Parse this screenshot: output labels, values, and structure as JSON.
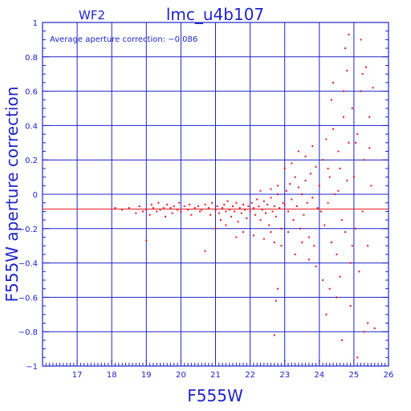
{
  "header": {
    "chip_label": "WF2",
    "title": "lmc_u4b107"
  },
  "annotation": {
    "text": "Average aperture correction: −0.086"
  },
  "axes": {
    "x_label": "F555W",
    "y_label": "F555W aperture correction",
    "x_ticks": [
      "17",
      "18",
      "19",
      "20",
      "21",
      "22",
      "23",
      "24",
      "25",
      "26"
    ],
    "y_ticks": [
      "1",
      "0.8",
      "0.6",
      "0.4",
      "0.2",
      "0",
      "−0.2",
      "−0.4",
      "−0.6",
      "−0.8",
      "−1"
    ]
  },
  "colors": {
    "axis_blue": "#1f24c8",
    "point_red": "#e8141a"
  },
  "chart_data": {
    "type": "scatter",
    "title": "lmc_u4b107",
    "subtitle": "WF2",
    "xlabel": "F555W",
    "ylabel": "F555W aperture correction",
    "xlim": [
      16,
      26
    ],
    "ylim": [
      -1,
      1
    ],
    "grid": true,
    "reference_line": {
      "y": -0.086
    },
    "series": [
      {
        "points": [
          [
            18.1,
            -0.08
          ],
          [
            18.3,
            -0.09
          ],
          [
            18.5,
            -0.08
          ],
          [
            18.7,
            -0.11
          ],
          [
            18.8,
            -0.07
          ],
          [
            18.9,
            -0.1
          ],
          [
            19.0,
            -0.09
          ],
          [
            19.0,
            -0.27
          ],
          [
            19.1,
            -0.12
          ],
          [
            19.15,
            -0.06
          ],
          [
            19.2,
            -0.08
          ],
          [
            19.3,
            -0.1
          ],
          [
            19.35,
            -0.05
          ],
          [
            19.4,
            -0.09
          ],
          [
            19.5,
            -0.08
          ],
          [
            19.55,
            -0.13
          ],
          [
            19.6,
            -0.06
          ],
          [
            19.7,
            -0.08
          ],
          [
            19.75,
            -0.11
          ],
          [
            19.8,
            -0.07
          ],
          [
            19.9,
            -0.09
          ],
          [
            19.95,
            -0.05
          ],
          [
            20.0,
            -0.1
          ],
          [
            20.1,
            -0.07
          ],
          [
            20.2,
            -0.09
          ],
          [
            20.25,
            -0.06
          ],
          [
            20.3,
            -0.12
          ],
          [
            20.4,
            -0.08
          ],
          [
            20.5,
            -0.07
          ],
          [
            20.55,
            -0.1
          ],
          [
            20.6,
            -0.09
          ],
          [
            20.7,
            -0.06
          ],
          [
            20.7,
            -0.33
          ],
          [
            20.8,
            -0.08
          ],
          [
            20.85,
            -0.12
          ],
          [
            20.9,
            -0.05
          ],
          [
            21.0,
            -0.09
          ],
          [
            21.05,
            -0.07
          ],
          [
            21.1,
            -0.11
          ],
          [
            21.15,
            -0.15
          ],
          [
            21.2,
            -0.08
          ],
          [
            21.25,
            -0.06
          ],
          [
            21.3,
            -0.1
          ],
          [
            21.35,
            -0.04
          ],
          [
            21.4,
            -0.09
          ],
          [
            21.45,
            -0.13
          ],
          [
            21.5,
            -0.07
          ],
          [
            21.55,
            -0.1
          ],
          [
            21.6,
            -0.05
          ],
          [
            21.65,
            -0.16
          ],
          [
            21.7,
            -0.08
          ],
          [
            21.75,
            -0.11
          ],
          [
            21.8,
            -0.06
          ],
          [
            21.85,
            -0.09
          ],
          [
            21.9,
            -0.14
          ],
          [
            21.95,
            -0.07
          ],
          [
            21.0,
            -0.2
          ],
          [
            21.3,
            -0.18
          ],
          [
            21.6,
            -0.25
          ],
          [
            21.8,
            -0.22
          ],
          [
            22.0,
            -0.1
          ],
          [
            22.05,
            -0.05
          ],
          [
            22.1,
            -0.08
          ],
          [
            22.15,
            -0.12
          ],
          [
            22.2,
            -0.03
          ],
          [
            22.25,
            -0.07
          ],
          [
            22.3,
            -0.15
          ],
          [
            22.35,
            -0.09
          ],
          [
            22.4,
            -0.04
          ],
          [
            22.45,
            -0.11
          ],
          [
            22.5,
            -0.06
          ],
          [
            22.55,
            -0.18
          ],
          [
            22.6,
            -0.02
          ],
          [
            22.65,
            -0.1
          ],
          [
            22.7,
            -0.07
          ],
          [
            22.75,
            -0.13
          ],
          [
            22.8,
            0.0
          ],
          [
            22.85,
            -0.08
          ],
          [
            22.9,
            -0.2
          ],
          [
            22.95,
            -0.05
          ],
          [
            22.1,
            -0.24
          ],
          [
            22.4,
            -0.26
          ],
          [
            22.6,
            -0.22
          ],
          [
            22.7,
            -0.28
          ],
          [
            22.9,
            -0.3
          ],
          [
            22.3,
            0.02
          ],
          [
            22.6,
            0.03
          ],
          [
            22.8,
            0.05
          ],
          [
            23.0,
            -0.06
          ],
          [
            23.05,
            0.02
          ],
          [
            23.1,
            -0.1
          ],
          [
            23.15,
            0.06
          ],
          [
            23.2,
            -0.03
          ],
          [
            23.25,
            -0.15
          ],
          [
            23.3,
            0.1
          ],
          [
            23.35,
            -0.07
          ],
          [
            23.4,
            0.04
          ],
          [
            23.45,
            -0.2
          ],
          [
            23.5,
            0.0
          ],
          [
            23.55,
            -0.12
          ],
          [
            23.6,
            0.08
          ],
          [
            23.65,
            -0.05
          ],
          [
            23.7,
            -0.25
          ],
          [
            23.75,
            0.12
          ],
          [
            23.8,
            -0.02
          ],
          [
            23.85,
            -0.3
          ],
          [
            23.9,
            0.16
          ],
          [
            23.95,
            -0.08
          ],
          [
            23.0,
            0.15
          ],
          [
            23.2,
            0.18
          ],
          [
            23.4,
            0.25
          ],
          [
            23.6,
            0.22
          ],
          [
            23.8,
            0.28
          ],
          [
            23.3,
            -0.35
          ],
          [
            23.5,
            -0.28
          ],
          [
            23.7,
            -0.38
          ],
          [
            23.9,
            -0.42
          ],
          [
            23.1,
            -0.22
          ],
          [
            22.8,
            -0.55
          ],
          [
            22.75,
            -0.62
          ],
          [
            22.7,
            -0.82
          ],
          [
            24.0,
            0.05
          ],
          [
            24.05,
            -0.1
          ],
          [
            24.1,
            0.2
          ],
          [
            24.15,
            -0.18
          ],
          [
            24.2,
            0.32
          ],
          [
            24.25,
            -0.05
          ],
          [
            24.3,
            0.1
          ],
          [
            24.35,
            -0.28
          ],
          [
            24.4,
            0.38
          ],
          [
            24.45,
            0.0
          ],
          [
            24.5,
            -0.35
          ],
          [
            24.55,
            0.25
          ],
          [
            24.6,
            0.15
          ],
          [
            24.65,
            -0.15
          ],
          [
            24.7,
            0.45
          ],
          [
            24.75,
            -0.22
          ],
          [
            24.8,
            0.08
          ],
          [
            24.85,
            0.3
          ],
          [
            24.9,
            -0.4
          ],
          [
            24.95,
            0.5
          ],
          [
            24.1,
            -0.5
          ],
          [
            24.3,
            -0.55
          ],
          [
            24.5,
            -0.6
          ],
          [
            24.6,
            -0.48
          ],
          [
            24.7,
            0.6
          ],
          [
            24.8,
            0.72
          ],
          [
            24.9,
            -0.65
          ],
          [
            24.35,
            0.55
          ],
          [
            24.4,
            0.65
          ],
          [
            24.2,
            -0.7
          ],
          [
            24.55,
            0.02
          ],
          [
            24.75,
            0.85
          ],
          [
            24.85,
            0.93
          ],
          [
            24.95,
            -0.3
          ],
          [
            24.65,
            -0.85
          ],
          [
            24.25,
            0.15
          ],
          [
            25.0,
            0.1
          ],
          [
            25.05,
            -0.2
          ],
          [
            25.1,
            0.35
          ],
          [
            25.15,
            -0.45
          ],
          [
            25.2,
            0.6
          ],
          [
            25.25,
            -0.1
          ],
          [
            25.3,
            0.2
          ],
          [
            25.35,
            0.74
          ],
          [
            25.4,
            -0.3
          ],
          [
            25.45,
            0.45
          ],
          [
            25.5,
            0.05
          ],
          [
            25.55,
            0.62
          ],
          [
            25.6,
            -0.78
          ],
          [
            25.3,
            -0.8
          ],
          [
            25.1,
            -0.95
          ],
          [
            25.2,
            0.9
          ],
          [
            25.45,
            0.27
          ],
          [
            25.4,
            -0.75
          ],
          [
            25.05,
            0.3
          ],
          [
            25.25,
            0.7
          ]
        ]
      }
    ]
  }
}
